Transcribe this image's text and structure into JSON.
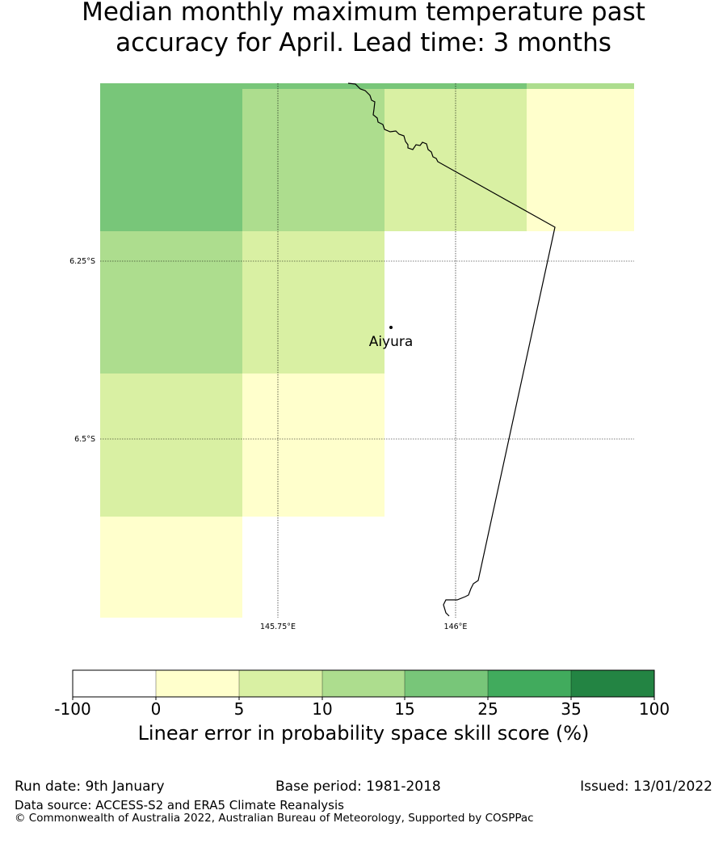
{
  "title": "Median monthly maximum temperature past\naccuracy for April. Lead time: 3 months",
  "map": {
    "place_label": "Aiyura",
    "lat_labels": [
      "6.25°S",
      "6.5°S"
    ],
    "lon_labels": [
      "145.75°E",
      "146°E"
    ]
  },
  "legend": {
    "tick_labels": [
      "-100",
      "0",
      "5",
      "10",
      "15",
      "25",
      "35",
      "100"
    ],
    "colors": [
      "#ffffff",
      "#ffffcc",
      "#d9f0a3",
      "#addd8e",
      "#78c679",
      "#41ab5d",
      "#238443"
    ],
    "label": "Linear error in probability space skill score (%)"
  },
  "footer": {
    "run_date": "Run date: 9th January",
    "base_period": "Base period: 1981-2018",
    "issued": "Issued: 13/01/2022",
    "data_source": "Data source: ACCESS-S2 and ERA5 Climate Reanalysis",
    "copyright": "© Commonwealth of Australia 2022, Australian Bureau of Meteorology, Supported by COSPPac"
  }
}
